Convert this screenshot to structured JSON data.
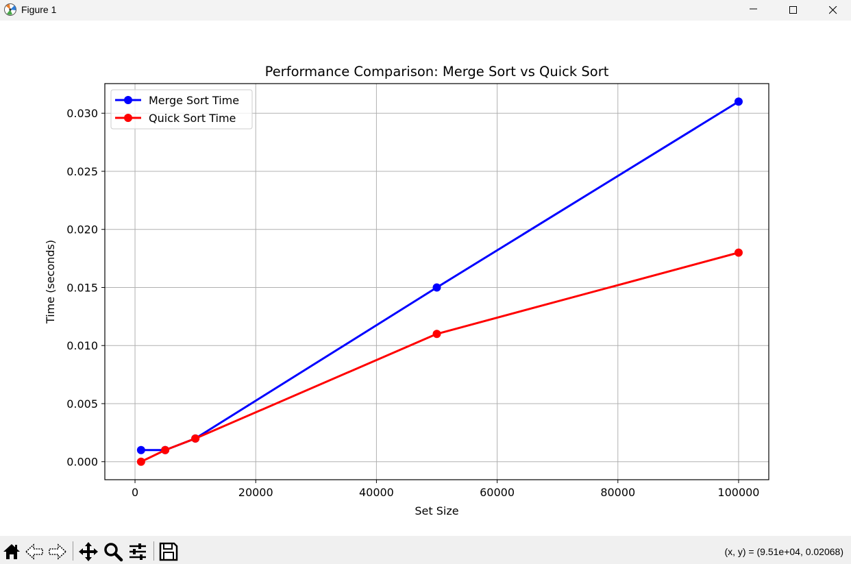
{
  "window": {
    "title": "Figure 1",
    "icons": {
      "app": "matplotlib-icon",
      "minimize": "minimize-icon",
      "maximize": "maximize-icon",
      "close": "close-icon"
    }
  },
  "toolbar": {
    "tools": [
      {
        "name": "home-icon"
      },
      {
        "name": "back-arrow-icon"
      },
      {
        "name": "forward-arrow-icon"
      },
      {
        "name": "pan-move-icon"
      },
      {
        "name": "zoom-magnifier-icon"
      },
      {
        "name": "configure-subplots-icon"
      },
      {
        "name": "save-floppy-icon"
      }
    ],
    "coords": "(x, y) = (9.51e+04, 0.02068)"
  },
  "chart_data": {
    "type": "line",
    "title": "Performance Comparison: Merge Sort vs Quick Sort",
    "xlabel": "Set Size",
    "ylabel": "Time (seconds)",
    "xlim": [
      -5000,
      105000
    ],
    "ylim": [
      -0.00155,
      0.03255
    ],
    "xticks": [
      0,
      20000,
      40000,
      60000,
      80000,
      100000
    ],
    "xtick_labels": [
      "0",
      "20000",
      "40000",
      "60000",
      "80000",
      "100000"
    ],
    "yticks": [
      0,
      0.005,
      0.01,
      0.015,
      0.02,
      0.025,
      0.03
    ],
    "ytick_labels": [
      "0.000",
      "0.005",
      "0.010",
      "0.015",
      "0.020",
      "0.025",
      "0.030"
    ],
    "grid": true,
    "legend": "upper-left",
    "x": [
      1000,
      5000,
      10000,
      50000,
      100000
    ],
    "series": [
      {
        "name": "Merge Sort Time",
        "color": "#0000ff",
        "values": [
          0.001,
          0.001,
          0.002,
          0.015,
          0.031
        ]
      },
      {
        "name": "Quick Sort Time",
        "color": "#ff0000",
        "values": [
          0.0,
          0.001,
          0.002,
          0.011,
          0.018
        ]
      }
    ]
  }
}
